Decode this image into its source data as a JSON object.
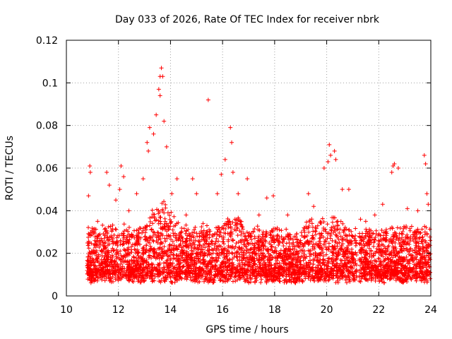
{
  "chart_data": {
    "type": "scatter",
    "title": "Day 033 of 2026, Rate Of TEC Index for receiver nbrk",
    "xlabel": "GPS time / hours",
    "ylabel": "ROTI / TECUs",
    "xlim": [
      10,
      24
    ],
    "ylim": [
      0,
      0.12
    ],
    "xticks": [
      10,
      12,
      14,
      16,
      18,
      20,
      22,
      24
    ],
    "xtick_labels": [
      "10",
      "12",
      "14",
      "16",
      "18",
      "20",
      "22",
      "24"
    ],
    "yticks": [
      0,
      0.02,
      0.04,
      0.06,
      0.08,
      0.1,
      0.12
    ],
    "ytick_labels": [
      "0",
      "0.02",
      "0.04",
      "0.06",
      "0.08",
      "0.1",
      "0.12"
    ],
    "grid": true,
    "marker": "+",
    "color": "#ff0000",
    "data_gap": [
      21.15,
      21.25
    ],
    "series": [
      {
        "name": "ROTI",
        "x": [
          10.85,
          10.9,
          10.92,
          11.05,
          11.2,
          11.55,
          11.65,
          11.9,
          12.05,
          12.1,
          12.2,
          12.4,
          12.7,
          12.95,
          13.1,
          13.15,
          13.2,
          13.35,
          13.45,
          13.55,
          13.6,
          13.6,
          13.65,
          13.7,
          13.75,
          13.85,
          14.05,
          14.25,
          14.6,
          14.85,
          15.0,
          15.25,
          15.45,
          15.8,
          15.95,
          16.1,
          16.3,
          16.35,
          16.4,
          16.6,
          16.95,
          17.4,
          17.7,
          17.95,
          18.1,
          18.5,
          19.0,
          19.3,
          19.5,
          19.9,
          20.05,
          20.1,
          20.15,
          20.3,
          20.35,
          20.6,
          20.85,
          21.3,
          21.5,
          21.85,
          22.15,
          22.5,
          22.55,
          22.6,
          22.75,
          23.1,
          23.5,
          23.75,
          23.8,
          23.85,
          23.9
        ],
        "y": [
          0.047,
          0.061,
          0.058,
          0.03,
          0.035,
          0.058,
          0.052,
          0.045,
          0.05,
          0.061,
          0.056,
          0.04,
          0.048,
          0.055,
          0.072,
          0.068,
          0.079,
          0.076,
          0.085,
          0.097,
          0.094,
          0.103,
          0.107,
          0.103,
          0.082,
          0.07,
          0.048,
          0.055,
          0.038,
          0.055,
          0.048,
          0.034,
          0.092,
          0.048,
          0.057,
          0.064,
          0.079,
          0.072,
          0.058,
          0.048,
          0.055,
          0.038,
          0.046,
          0.047,
          0.028,
          0.038,
          0.025,
          0.048,
          0.042,
          0.06,
          0.063,
          0.071,
          0.066,
          0.068,
          0.064,
          0.05,
          0.05,
          0.036,
          0.035,
          0.038,
          0.043,
          0.058,
          0.061,
          0.062,
          0.06,
          0.041,
          0.04,
          0.066,
          0.062,
          0.048,
          0.043
        ]
      }
    ]
  }
}
